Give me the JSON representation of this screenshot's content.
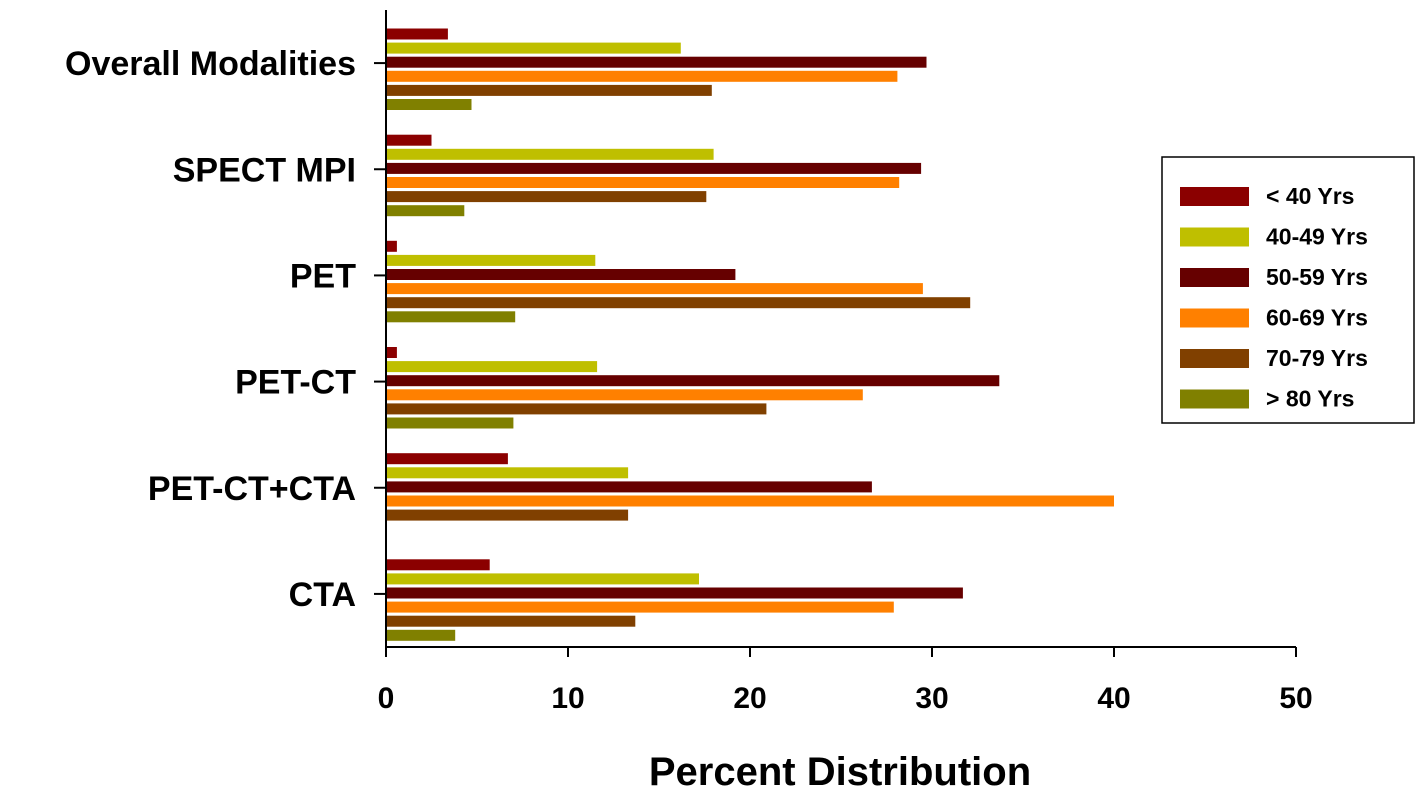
{
  "chart_data": {
    "type": "bar",
    "orientation": "horizontal",
    "title": "",
    "xlabel": "Percent Distribution",
    "ylabel": "",
    "xlim": [
      0,
      50
    ],
    "xticks": [
      "0",
      "10",
      "20",
      "30",
      "40",
      "50"
    ],
    "grid": false,
    "legend_position": "right",
    "categories": [
      "Overall Modalities",
      "SPECT MPI",
      "PET",
      "PET-CT",
      "PET-CT+CTA",
      "CTA"
    ],
    "series": [
      {
        "name": "< 40 Yrs",
        "color": "#8B0000",
        "values": [
          3.4,
          2.5,
          0.6,
          0.6,
          6.7,
          5.7
        ]
      },
      {
        "name": "40-49 Yrs",
        "color": "#BFBF00",
        "values": [
          16.2,
          18.0,
          11.5,
          11.6,
          13.3,
          17.2
        ]
      },
      {
        "name": "50-59 Yrs",
        "color": "#660000",
        "values": [
          29.7,
          29.4,
          19.2,
          33.7,
          26.7,
          31.7
        ]
      },
      {
        "name": "60-69 Yrs",
        "color": "#FF8000",
        "values": [
          28.1,
          28.2,
          29.5,
          26.2,
          40.0,
          27.9
        ]
      },
      {
        "name": "70-79 Yrs",
        "color": "#804000",
        "values": [
          17.9,
          17.6,
          32.1,
          20.9,
          13.3,
          13.7
        ]
      },
      {
        "name": "> 80 Yrs",
        "color": "#808000",
        "values": [
          4.7,
          4.3,
          7.1,
          7.0,
          0,
          3.8
        ]
      }
    ]
  }
}
